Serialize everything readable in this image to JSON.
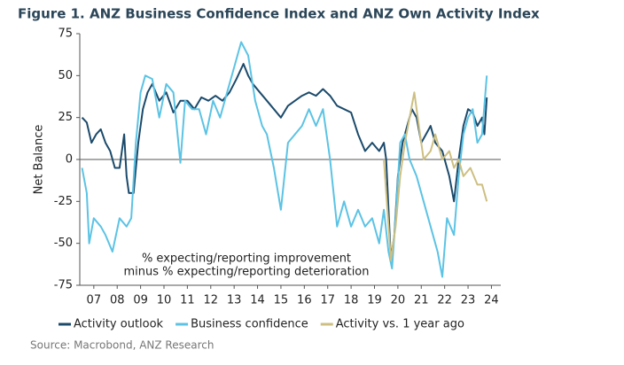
{
  "chart_data": {
    "type": "line",
    "title": "Figure 1. ANZ Business Confidence Index and ANZ Own Activity Index",
    "ylabel": "Net Balance",
    "annotation": [
      "% expecting/reporting improvement",
      "minus % expecting/reporting deterioration"
    ],
    "source": "Source: Macrobond, ANZ Research",
    "xlim": [
      2006.9,
      2024.9
    ],
    "xticks": [
      {
        "value": 2007.5,
        "label": "07"
      },
      {
        "value": 2008.5,
        "label": "08"
      },
      {
        "value": 2009.5,
        "label": "09"
      },
      {
        "value": 2010.5,
        "label": "10"
      },
      {
        "value": 2011.5,
        "label": "11"
      },
      {
        "value": 2012.5,
        "label": "12"
      },
      {
        "value": 2013.5,
        "label": "13"
      },
      {
        "value": 2014.5,
        "label": "14"
      },
      {
        "value": 2015.5,
        "label": "15"
      },
      {
        "value": 2016.5,
        "label": "16"
      },
      {
        "value": 2017.5,
        "label": "17"
      },
      {
        "value": 2018.5,
        "label": "18"
      },
      {
        "value": 2019.5,
        "label": "19"
      },
      {
        "value": 2020.5,
        "label": "20"
      },
      {
        "value": 2021.5,
        "label": "21"
      },
      {
        "value": 2022.5,
        "label": "22"
      },
      {
        "value": 2023.5,
        "label": "23"
      },
      {
        "value": 2024.5,
        "label": "24"
      }
    ],
    "ylim": [
      -75,
      75
    ],
    "yticks": [
      -75,
      -50,
      -25,
      0,
      25,
      50,
      75
    ],
    "grid": false,
    "legend": "bottom",
    "series": [
      {
        "name": "Activity outlook",
        "color": "#1b4a6b",
        "x": [
          2007.0,
          2007.2,
          2007.4,
          2007.6,
          2007.8,
          2008.0,
          2008.2,
          2008.4,
          2008.6,
          2008.8,
          2008.9,
          2009.0,
          2009.2,
          2009.4,
          2009.6,
          2009.8,
          2010.0,
          2010.3,
          2010.6,
          2010.9,
          2011.2,
          2011.5,
          2011.8,
          2012.1,
          2012.4,
          2012.7,
          2013.0,
          2013.3,
          2013.6,
          2013.9,
          2014.1,
          2014.3,
          2014.6,
          2014.9,
          2015.2,
          2015.5,
          2015.8,
          2016.1,
          2016.4,
          2016.7,
          2017.0,
          2017.3,
          2017.6,
          2017.9,
          2018.2,
          2018.5,
          2018.8,
          2019.1,
          2019.4,
          2019.7,
          2019.9,
          2020.0,
          2020.2,
          2020.35,
          2020.5,
          2020.7,
          2020.9,
          2021.1,
          2021.3,
          2021.5,
          2021.7,
          2021.9,
          2022.1,
          2022.4,
          2022.7,
          2022.9,
          2023.1,
          2023.3,
          2023.5,
          2023.7,
          2023.9,
          2024.1,
          2024.2,
          2024.3
        ],
        "values": [
          25,
          22,
          10,
          15,
          18,
          10,
          5,
          -5,
          -5,
          15,
          -10,
          -20,
          -20,
          10,
          30,
          40,
          45,
          35,
          40,
          28,
          35,
          35,
          30,
          37,
          35,
          38,
          35,
          40,
          48,
          57,
          50,
          45,
          40,
          35,
          30,
          25,
          32,
          35,
          38,
          40,
          38,
          42,
          38,
          32,
          30,
          28,
          15,
          5,
          10,
          5,
          10,
          0,
          -60,
          -45,
          -10,
          10,
          20,
          30,
          25,
          10,
          15,
          20,
          10,
          5,
          -10,
          -25,
          0,
          20,
          30,
          28,
          20,
          25,
          15,
          37
        ]
      },
      {
        "name": "Business confidence",
        "color": "#5cc3e4",
        "x": [
          2007.0,
          2007.2,
          2007.3,
          2007.5,
          2007.8,
          2008.0,
          2008.3,
          2008.6,
          2008.9,
          2009.1,
          2009.3,
          2009.5,
          2009.7,
          2010.0,
          2010.3,
          2010.6,
          2010.9,
          2011.2,
          2011.4,
          2011.7,
          2012.0,
          2012.3,
          2012.6,
          2012.9,
          2013.2,
          2013.5,
          2013.8,
          2014.1,
          2014.4,
          2014.7,
          2014.9,
          2015.2,
          2015.5,
          2015.8,
          2016.1,
          2016.4,
          2016.7,
          2017.0,
          2017.3,
          2017.6,
          2017.9,
          2018.2,
          2018.5,
          2018.8,
          2019.1,
          2019.4,
          2019.7,
          2019.9,
          2020.1,
          2020.25,
          2020.4,
          2020.6,
          2020.8,
          2021.0,
          2021.3,
          2021.6,
          2021.9,
          2022.2,
          2022.4,
          2022.6,
          2022.9,
          2023.1,
          2023.3,
          2023.5,
          2023.7,
          2023.9,
          2024.1,
          2024.3
        ],
        "values": [
          -5,
          -20,
          -50,
          -35,
          -40,
          -45,
          -55,
          -35,
          -40,
          -35,
          10,
          40,
          50,
          48,
          25,
          45,
          40,
          -2,
          35,
          30,
          30,
          15,
          35,
          25,
          40,
          55,
          70,
          62,
          35,
          20,
          15,
          -5,
          -30,
          10,
          15,
          20,
          30,
          20,
          30,
          0,
          -40,
          -25,
          -40,
          -30,
          -40,
          -35,
          -50,
          -30,
          -55,
          -65,
          -35,
          10,
          15,
          0,
          -10,
          -25,
          -40,
          -55,
          -70,
          -35,
          -45,
          -10,
          15,
          25,
          30,
          10,
          15,
          50
        ]
      },
      {
        "name": "Activity vs. 1 year ago",
        "color": "#cdbf82",
        "x": [
          2019.9,
          2020.2,
          2020.4,
          2020.6,
          2020.8,
          2021.0,
          2021.2,
          2021.4,
          2021.6,
          2021.9,
          2022.1,
          2022.4,
          2022.7,
          2022.9,
          2023.1,
          2023.3,
          2023.6,
          2023.9,
          2024.1,
          2024.3
        ],
        "values": [
          0,
          -60,
          -40,
          -10,
          10,
          25,
          40,
          20,
          0,
          5,
          15,
          0,
          5,
          -5,
          0,
          -10,
          -5,
          -15,
          -15,
          -25
        ]
      }
    ]
  }
}
